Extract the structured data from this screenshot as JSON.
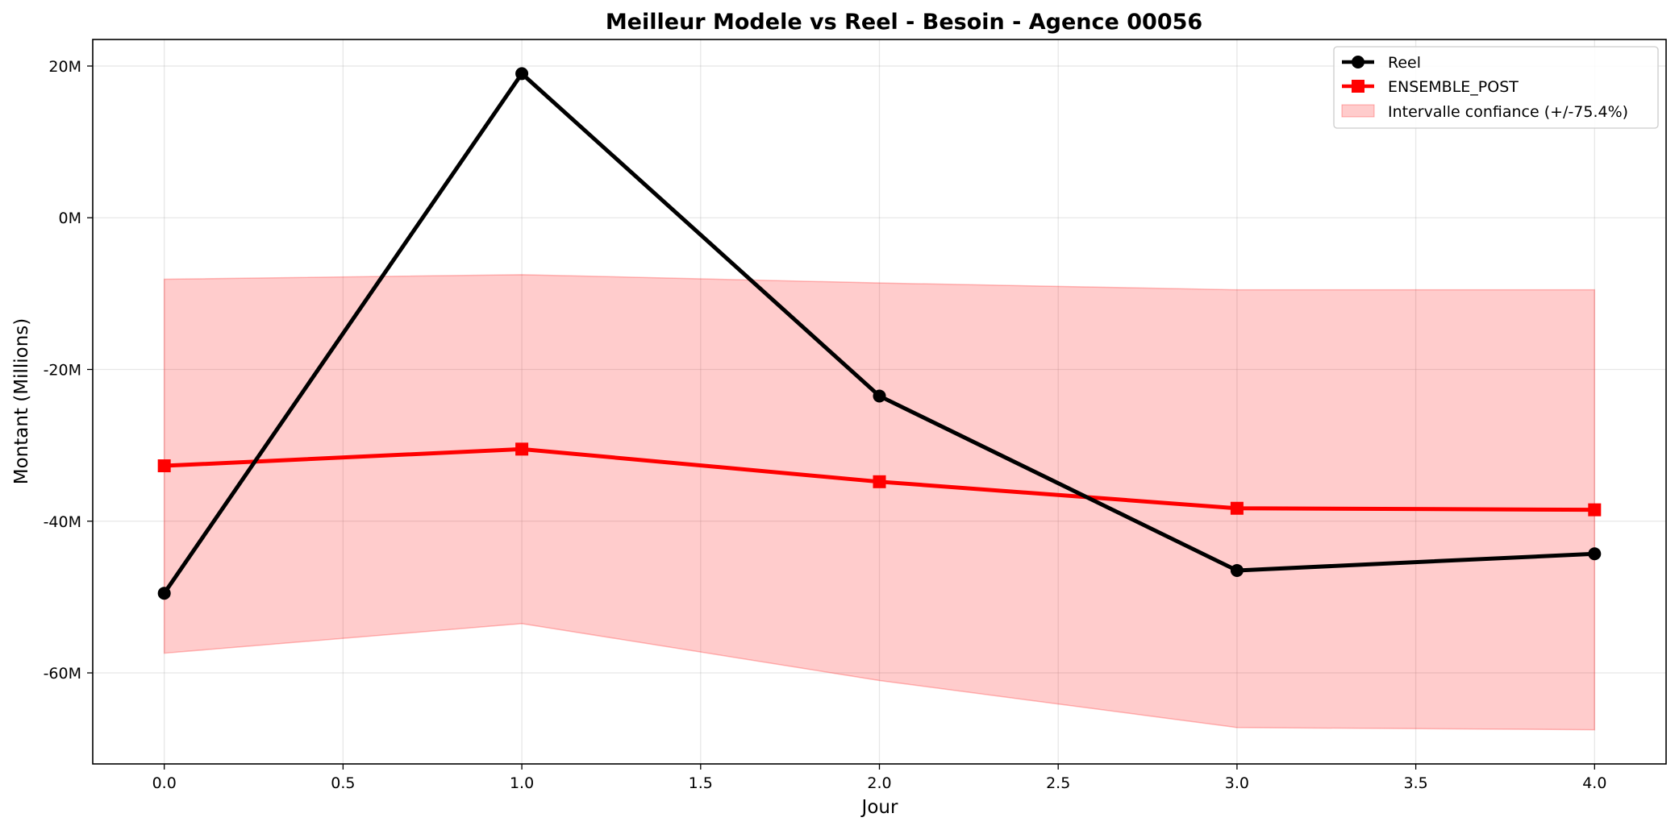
{
  "chart_data": {
    "type": "line",
    "title": "Meilleur Modele vs Reel - Besoin - Agence 00056",
    "xlabel": "Jour",
    "ylabel": "Montant (Millions)",
    "xlim": [
      -0.2,
      4.2
    ],
    "ylim": [
      -72,
      23.5
    ],
    "x_ticks": [
      0.0,
      0.5,
      1.0,
      1.5,
      2.0,
      2.5,
      3.0,
      3.5,
      4.0
    ],
    "x_tick_labels": [
      "0.0",
      "0.5",
      "1.0",
      "1.5",
      "2.0",
      "2.5",
      "3.0",
      "3.5",
      "4.0"
    ],
    "y_ticks": [
      20,
      0,
      -20,
      -40,
      -60
    ],
    "y_tick_labels": [
      "20M",
      "0M",
      "-20M",
      "-40M",
      "-60M"
    ],
    "grid": true,
    "legend_position": "top-right",
    "x": [
      0,
      1,
      2,
      3,
      4
    ],
    "series": [
      {
        "name": "Reel",
        "values": [
          -49.5,
          19.0,
          -23.5,
          -46.5,
          -44.3
        ],
        "color": "#000000",
        "marker": "circle"
      },
      {
        "name": "ENSEMBLE_POST",
        "values": [
          -32.7,
          -30.5,
          -34.8,
          -38.3,
          -38.5
        ],
        "color": "#ff0000",
        "marker": "square"
      }
    ],
    "band": {
      "name": "Intervalle confiance (+/-75.4%)",
      "lower": [
        -57.4,
        -53.5,
        -61.0,
        -67.2,
        -67.5
      ],
      "upper": [
        -8.1,
        -7.5,
        -8.6,
        -9.5,
        -9.5
      ],
      "color": "#ff0000"
    }
  }
}
